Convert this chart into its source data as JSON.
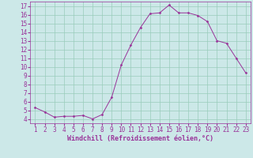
{
  "x": [
    1,
    2,
    3,
    4,
    5,
    6,
    7,
    8,
    9,
    10,
    11,
    12,
    13,
    14,
    15,
    16,
    17,
    18,
    19,
    20,
    21,
    22,
    23
  ],
  "y": [
    5.3,
    4.8,
    4.2,
    4.3,
    4.3,
    4.4,
    4.0,
    4.5,
    6.5,
    10.2,
    12.5,
    14.5,
    16.1,
    16.2,
    17.1,
    16.2,
    16.2,
    15.9,
    15.2,
    13.0,
    12.7,
    11.0,
    9.3
  ],
  "line_color": "#993399",
  "marker": "D",
  "marker_size": 1.5,
  "bg_color": "#cce8e8",
  "grid_color": "#99ccbb",
  "xlabel": "Windchill (Refroidissement éolien,°C)",
  "xlabel_color": "#993399",
  "tick_color": "#993399",
  "ylim": [
    3.5,
    17.5
  ],
  "xlim": [
    0.5,
    23.5
  ],
  "yticks": [
    4,
    5,
    6,
    7,
    8,
    9,
    10,
    11,
    12,
    13,
    14,
    15,
    16,
    17
  ],
  "xticks": [
    1,
    2,
    3,
    4,
    5,
    6,
    7,
    8,
    9,
    10,
    11,
    12,
    13,
    14,
    15,
    16,
    17,
    18,
    19,
    20,
    21,
    22,
    23
  ],
  "axis_fontsize": 5.5,
  "label_fontsize": 6.0,
  "line_width": 0.7
}
